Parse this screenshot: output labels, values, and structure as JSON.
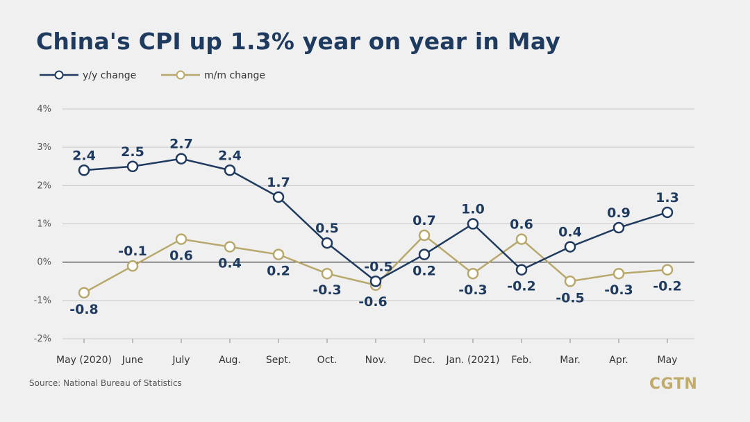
{
  "title": "China's CPI up 1.3% year on year in May",
  "source": "Source: National Bureau of Statistics",
  "brand": "CGTN",
  "colors": {
    "yy": "#1f3a5f",
    "mm": "#b8a86c",
    "background": "#f0f0f0",
    "grid": "#c8c8c8",
    "axis_text": "#555555"
  },
  "chart_data": {
    "type": "line",
    "title": "China's CPI up 1.3% year on year in May",
    "xlabel": "",
    "ylabel": "",
    "categories": [
      "May (2020)",
      "June",
      "July",
      "Aug.",
      "Sept.",
      "Oct.",
      "Nov.",
      "Dec.",
      "Jan. (2021)",
      "Feb.",
      "Mar.",
      "Apr.",
      "May"
    ],
    "series": [
      {
        "name": "y/y change",
        "values": [
          2.4,
          2.5,
          2.7,
          2.4,
          1.7,
          0.5,
          -0.5,
          0.2,
          1.0,
          -0.2,
          0.4,
          0.9,
          1.3
        ],
        "labels": [
          "2.4",
          "2.5",
          "2.7",
          "2.4",
          "1.7",
          "0.5",
          "-0.5",
          "0.2",
          "1.0",
          "-0.2",
          "0.4",
          "0.9",
          "1.3"
        ]
      },
      {
        "name": "m/m change",
        "values": [
          -0.8,
          -0.1,
          0.6,
          0.4,
          0.2,
          -0.3,
          -0.6,
          0.7,
          -0.3,
          0.6,
          -0.5,
          -0.3,
          -0.2
        ],
        "labels": [
          "-0.8",
          "-0.1",
          "0.6",
          "0.4",
          "0.2",
          "-0.3",
          "-0.6",
          "0.7",
          "-0.3",
          "0.6",
          "-0.5",
          "-0.3",
          "-0.2"
        ]
      }
    ],
    "yticks": [
      4,
      3,
      2,
      1,
      0,
      -1,
      -2
    ],
    "ytick_labels": [
      "4%",
      "3%",
      "2%",
      "1%",
      "0%",
      "-1%",
      "-2%"
    ],
    "ylim": [
      -2,
      4
    ],
    "grid": true,
    "legend_position": "top-left"
  }
}
